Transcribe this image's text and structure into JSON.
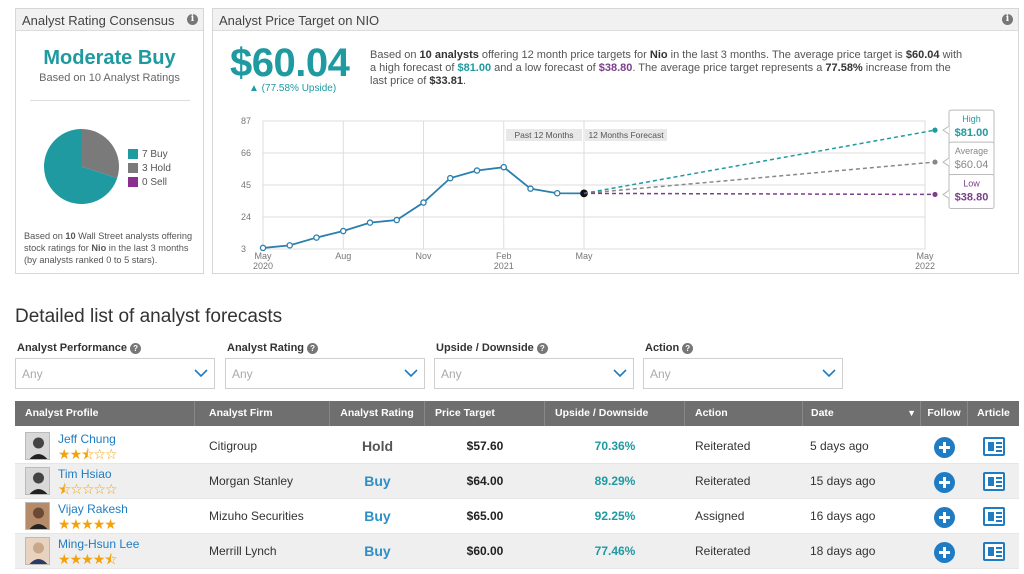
{
  "consensus": {
    "header": "Analyst Rating Consensus",
    "rating": "Moderate Buy",
    "based_on": "Based on 10 Analyst Ratings",
    "legend": [
      {
        "label": "7 Buy",
        "count": 7,
        "color": "#1e9aa0"
      },
      {
        "label": "3 Hold",
        "count": 3,
        "color": "#7a7a7a"
      },
      {
        "label": "0 Sell",
        "count": 0,
        "color": "#8b2f8f"
      }
    ],
    "foot_1": "Based on ",
    "foot_bold_1": "10",
    "foot_2": " Wall Street analysts offering stock ratings for ",
    "foot_bold_2": "Nio",
    "foot_3": " in the last 3 months (by analysts ranked 0 to 5 stars)."
  },
  "price_target": {
    "header": "Analyst Price Target on NIO",
    "price": "$60.04",
    "upside": "▲ (77.58% Upside)",
    "desc_1": "Based on ",
    "desc_analysts": "10 analysts",
    "desc_2": " offering 12 month price targets for ",
    "desc_company": "Nio",
    "desc_3": " in the last 3 months. The average price target is ",
    "desc_avg": "$60.04",
    "desc_4": " with a high forecast of ",
    "desc_high": "$81.00",
    "desc_5": " and a low forecast of ",
    "desc_low": "$38.80",
    "desc_6": ". The average price target represents a ",
    "desc_pct": "77.58%",
    "desc_7": " increase from the last price of ",
    "desc_last": "$33.81",
    "desc_8": "."
  },
  "chart_data": {
    "type": "line",
    "y_ticks": [
      3,
      24,
      45,
      66,
      87
    ],
    "ylim": [
      3,
      87
    ],
    "x_ticks": [
      {
        "label": "May",
        "sub": "2020",
        "t": 0
      },
      {
        "label": "Aug",
        "sub": "",
        "t": 3
      },
      {
        "label": "Nov",
        "sub": "",
        "t": 6
      },
      {
        "label": "Feb",
        "sub": "2021",
        "t": 9
      },
      {
        "label": "May",
        "sub": "",
        "t": 12
      },
      {
        "label": "May",
        "sub": "2022",
        "t": 24
      }
    ],
    "period_labels": [
      "Past 12 Months",
      "12 Months Forecast"
    ],
    "history": [
      {
        "t": 0,
        "y": 3.7
      },
      {
        "t": 1,
        "y": 5.4
      },
      {
        "t": 2,
        "y": 10.5
      },
      {
        "t": 3,
        "y": 14.8
      },
      {
        "t": 4,
        "y": 20.3
      },
      {
        "t": 5,
        "y": 22.0
      },
      {
        "t": 6,
        "y": 33.5
      },
      {
        "t": 7,
        "y": 49.5
      },
      {
        "t": 8,
        "y": 54.5
      },
      {
        "t": 9,
        "y": 56.7
      },
      {
        "t": 10,
        "y": 42.6
      },
      {
        "t": 11,
        "y": 39.6
      },
      {
        "t": 12,
        "y": 39.5
      }
    ],
    "forecasts": [
      {
        "label": "High",
        "value": 81.0,
        "value_text": "$81.00",
        "color": "#1e9aa0"
      },
      {
        "label": "Average",
        "value": 60.04,
        "value_text": "$60.04",
        "color": "#888888"
      },
      {
        "label": "Low",
        "value": 38.8,
        "value_text": "$38.80",
        "color": "#7b3f8b"
      }
    ]
  },
  "forecasts_section": {
    "title": "Detailed list of analyst forecasts",
    "filters": [
      {
        "label": "Analyst Performance",
        "placeholder": "Any"
      },
      {
        "label": "Analyst Rating",
        "placeholder": "Any"
      },
      {
        "label": "Upside / Downside",
        "placeholder": "Any"
      },
      {
        "label": "Action",
        "placeholder": "Any"
      }
    ],
    "columns": [
      "Analyst Profile",
      "Analyst Firm",
      "Analyst Rating",
      "Price Target",
      "Upside / Downside",
      "Action",
      "Date",
      "Follow",
      "Article"
    ],
    "sort_indicator": "▼",
    "rows": [
      {
        "name": "Jeff Chung",
        "stars": 2.5,
        "firm": "Citigroup",
        "rating": "Hold",
        "target": "$57.60",
        "updown": "70.36%",
        "action": "Reiterated",
        "date": "5 days ago"
      },
      {
        "name": "Tim Hsiao",
        "stars": 0.5,
        "firm": "Morgan Stanley",
        "rating": "Buy",
        "target": "$64.00",
        "updown": "89.29%",
        "action": "Reiterated",
        "date": "15 days ago"
      },
      {
        "name": "Vijay Rakesh",
        "stars": 5,
        "firm": "Mizuho Securities",
        "rating": "Buy",
        "target": "$65.00",
        "updown": "92.25%",
        "action": "Assigned",
        "date": "16 days ago"
      },
      {
        "name": "Ming-Hsun Lee",
        "stars": 4.5,
        "firm": "Merrill Lynch",
        "rating": "Buy",
        "target": "$60.00",
        "updown": "77.46%",
        "action": "Reiterated",
        "date": "18 days ago"
      }
    ]
  }
}
